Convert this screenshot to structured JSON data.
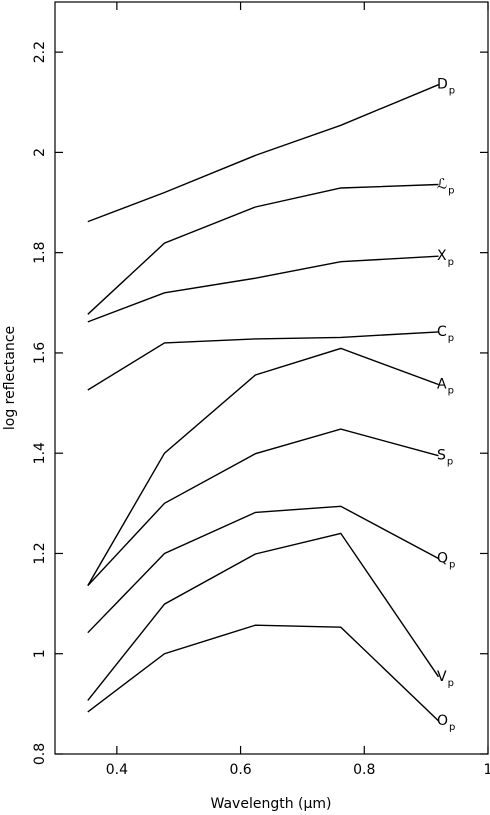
{
  "chart_data": {
    "type": "line",
    "title": "",
    "xlabel": "Wavelength (μm)",
    "ylabel": "log reflectance",
    "xlim": [
      0.3,
      1.0
    ],
    "ylim": [
      0.8,
      2.3
    ],
    "xticks": [
      0.4,
      0.6,
      0.8,
      1.0
    ],
    "xtick_labels": [
      "0.4",
      "0.6",
      "0.8",
      "1"
    ],
    "yticks": [
      0.8,
      1.0,
      1.2,
      1.4,
      1.6,
      1.8,
      2.0,
      2.2
    ],
    "ytick_labels": [
      "0.8",
      "1",
      "1.2",
      "1.4",
      "1.6",
      "1.8",
      "2",
      "2.2"
    ],
    "grid": false,
    "legend": "none",
    "x": [
      0.353,
      0.477,
      0.624,
      0.762,
      0.92
    ],
    "series": [
      {
        "name": "D",
        "subscript": "p",
        "values": [
          1.862,
          1.92,
          1.994,
          2.054,
          2.135
        ]
      },
      {
        "name": "ℒ",
        "subscript": "p",
        "values": [
          1.677,
          1.819,
          1.891,
          1.929,
          1.936
        ]
      },
      {
        "name": "X",
        "subscript": "p",
        "values": [
          1.662,
          1.72,
          1.749,
          1.782,
          1.793
        ]
      },
      {
        "name": "C",
        "subscript": "p",
        "values": [
          1.526,
          1.62,
          1.628,
          1.631,
          1.642
        ]
      },
      {
        "name": "A",
        "subscript": "p",
        "values": [
          1.136,
          1.4,
          1.556,
          1.609,
          1.537
        ]
      },
      {
        "name": "S",
        "subscript": "p",
        "values": [
          1.136,
          1.3,
          1.399,
          1.448,
          1.395
        ]
      },
      {
        "name": "Q",
        "subscript": "p",
        "values": [
          1.042,
          1.2,
          1.282,
          1.294,
          1.19
        ]
      },
      {
        "name": "V",
        "subscript": "p",
        "values": [
          0.907,
          1.099,
          1.199,
          1.24,
          0.954
        ]
      },
      {
        "name": "O",
        "subscript": "p",
        "values": [
          0.884,
          1.0,
          1.057,
          1.053,
          0.866
        ]
      }
    ]
  }
}
